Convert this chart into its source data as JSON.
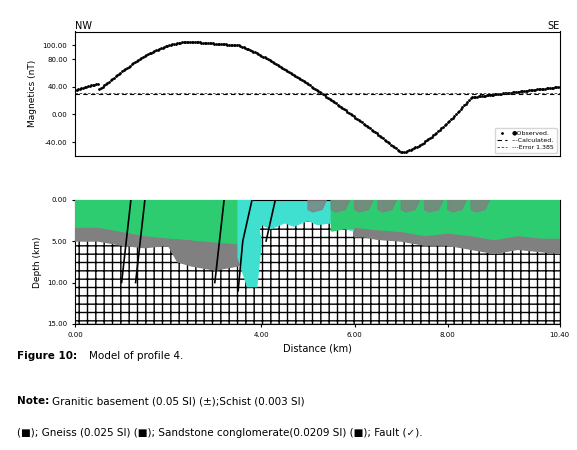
{
  "title_top_left": "NW",
  "title_top_right": "SE",
  "mag_ylabel": "Magnetics (nT)",
  "mag_yticks": [
    "-40.00",
    "0.00",
    "40.00",
    "80.00",
    "100.00"
  ],
  "mag_ylim": [
    -60,
    120
  ],
  "depth_ylabel": "Depth (km)",
  "depth_yticks": [
    "0.00",
    "5.00",
    "10.00",
    "15.00"
  ],
  "depth_ylim": [
    15,
    0
  ],
  "xlabel": "Distance (km)",
  "xticks": [
    "0.00",
    "4.00",
    "6.00",
    "10.40"
  ],
  "xlim": [
    0,
    10.4
  ],
  "fig_caption": "Figure 10:  Model of profile 4.",
  "fig_note": "Note:",
  "fig_note_text": " Granitic basement (0.05 SI) (±);Schist (0.003 SI) (■); Gneiss (0.025 SI) (■); Sandstone conglomerate(0.0209 SI) (■); Fault (✓).",
  "color_schist": "#2ecc71",
  "color_gneiss": "#808080",
  "color_sandstone": "#40e0d0",
  "color_granite_bg": "#ffffff",
  "observed_color": "#000000",
  "calculated_color": "#000000",
  "error_color": "#cc0000",
  "background_color": "#ffffff"
}
